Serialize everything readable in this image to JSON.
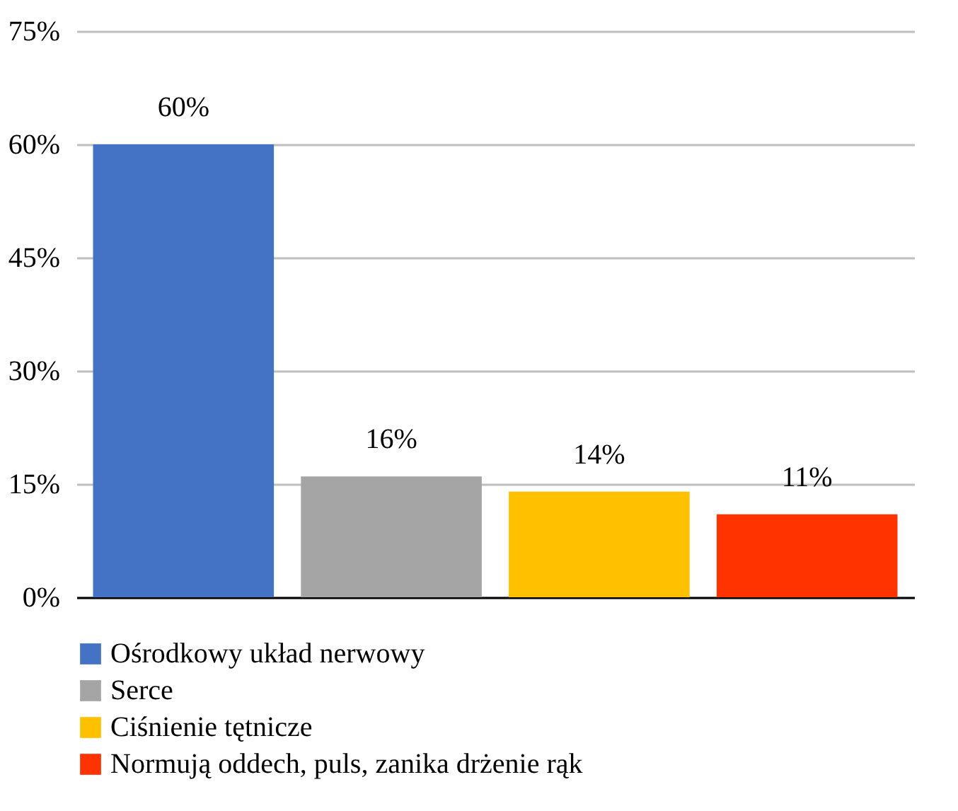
{
  "chart_data": {
    "type": "bar",
    "categories": [
      null,
      null,
      null,
      null
    ],
    "series": [
      {
        "name": "Ośrodkowy układ nerwowy",
        "color": "#4472c4",
        "values": [
          60,
          null,
          null,
          null
        ],
        "value_labels": [
          "60%",
          null,
          null,
          null
        ]
      },
      {
        "name": "Serce",
        "color": "#a5a5a5",
        "values": [
          null,
          16,
          null,
          null
        ],
        "value_labels": [
          null,
          "16%",
          null,
          null
        ]
      },
      {
        "name": "Ciśnienie tętnicze",
        "color": "#ffc000",
        "values": [
          null,
          null,
          14,
          null
        ],
        "value_labels": [
          null,
          null,
          "14%",
          null
        ]
      },
      {
        "name": "Normują oddech, puls, zanika drżenie rąk",
        "color": "#ff3300",
        "values": [
          null,
          null,
          null,
          11
        ],
        "value_labels": [
          null,
          null,
          null,
          "11%"
        ]
      }
    ],
    "ylim": [
      0,
      75
    ],
    "yticks": [
      {
        "value": 0,
        "label": "0%"
      },
      {
        "value": 15,
        "label": "15%"
      },
      {
        "value": 30,
        "label": "30%"
      },
      {
        "value": 45,
        "label": "45%"
      },
      {
        "value": 60,
        "label": "60%"
      },
      {
        "value": 75,
        "label": "75%"
      }
    ],
    "grid": "y",
    "legend": "bottom",
    "tick_labels": "y"
  }
}
